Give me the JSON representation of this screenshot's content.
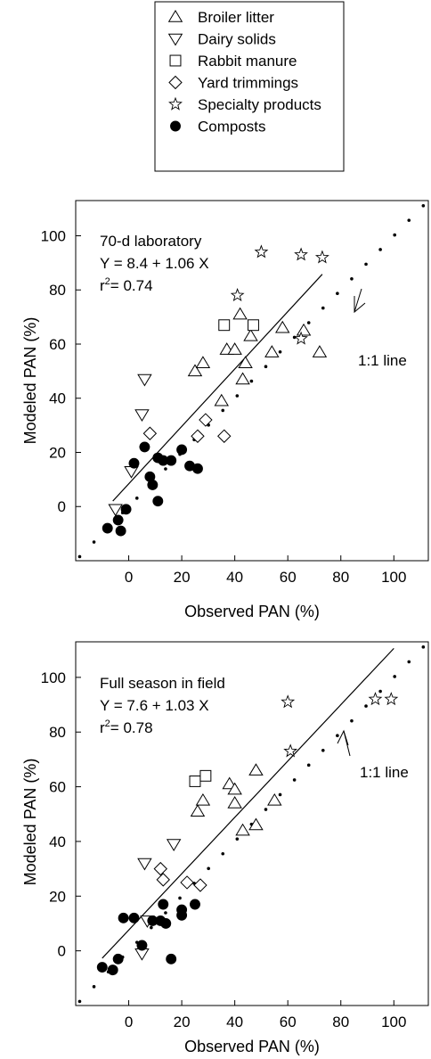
{
  "legend": {
    "items": [
      {
        "marker": "triangle-up",
        "label": "Broiler litter"
      },
      {
        "marker": "triangle-down",
        "label": "Dairy solids"
      },
      {
        "marker": "square",
        "label": "Rabbit  manure"
      },
      {
        "marker": "diamond",
        "label": "Yard trimmings"
      },
      {
        "marker": "star",
        "label": "Specialty products"
      },
      {
        "marker": "filled-circle",
        "label": "Composts"
      }
    ]
  },
  "chart_data": [
    {
      "type": "scatter",
      "panel_label": "70-d laboratory",
      "equation": "Y = 8.4 + 1.06 X",
      "r2_prefix": "r",
      "r2_sup": "2",
      "r2_value": "=  0.74",
      "oneone_label": "1:1 line",
      "xlabel": "Observed PAN (%)",
      "ylabel": "Modeled PAN (%)",
      "xlim": [
        -20,
        113
      ],
      "ylim": [
        -20,
        113
      ],
      "xticks": [
        0,
        20,
        40,
        60,
        80,
        100
      ],
      "yticks": [
        0,
        20,
        40,
        60,
        80,
        100
      ],
      "regression": {
        "intercept": 8.4,
        "slope": 1.06,
        "x_range": [
          -6,
          73
        ]
      },
      "series": [
        {
          "marker": "triangle-up",
          "points": [
            [
              25,
              50
            ],
            [
              28,
              53
            ],
            [
              35,
              39
            ],
            [
              37,
              58
            ],
            [
              40,
              58
            ],
            [
              42,
              71
            ],
            [
              43,
              47
            ],
            [
              44,
              53
            ],
            [
              46,
              63
            ],
            [
              54,
              57
            ],
            [
              58,
              66
            ],
            [
              66,
              65
            ],
            [
              72,
              57
            ]
          ]
        },
        {
          "marker": "triangle-down",
          "points": [
            [
              -5,
              -1
            ],
            [
              1,
              13
            ],
            [
              5,
              34
            ],
            [
              6,
              47
            ]
          ]
        },
        {
          "marker": "square",
          "points": [
            [
              36,
              67
            ],
            [
              47,
              67
            ]
          ]
        },
        {
          "marker": "diamond",
          "points": [
            [
              8,
              27
            ],
            [
              26,
              26
            ],
            [
              29,
              32
            ],
            [
              36,
              26
            ]
          ]
        },
        {
          "marker": "star",
          "points": [
            [
              41,
              78
            ],
            [
              50,
              94
            ],
            [
              65,
              93
            ],
            [
              73,
              92
            ],
            [
              65,
              62
            ]
          ]
        },
        {
          "marker": "filled-circle",
          "points": [
            [
              -8,
              -8
            ],
            [
              -4,
              -5
            ],
            [
              -3,
              -9
            ],
            [
              -1,
              -1
            ],
            [
              2,
              16
            ],
            [
              6,
              22
            ],
            [
              8,
              11
            ],
            [
              9,
              8
            ],
            [
              11,
              2
            ],
            [
              11,
              18
            ],
            [
              13,
              17
            ],
            [
              16,
              17
            ],
            [
              20,
              21
            ],
            [
              23,
              15
            ],
            [
              26,
              14
            ]
          ]
        }
      ]
    },
    {
      "type": "scatter",
      "panel_label": "Full season in field",
      "equation": "Y = 7.6 + 1.03 X",
      "r2_prefix": "r",
      "r2_sup": "2",
      "r2_value": "=  0.78",
      "oneone_label": "1:1 line",
      "xlabel": "Observed PAN (%)",
      "ylabel": "Modeled PAN (%)",
      "xlim": [
        -20,
        113
      ],
      "ylim": [
        -20,
        113
      ],
      "xticks": [
        0,
        20,
        40,
        60,
        80,
        100
      ],
      "yticks": [
        0,
        20,
        40,
        60,
        80,
        100
      ],
      "regression": {
        "intercept": 7.6,
        "slope": 1.03,
        "x_range": [
          -10,
          100
        ]
      },
      "series": [
        {
          "marker": "triangle-up",
          "points": [
            [
              26,
              51
            ],
            [
              28,
              55
            ],
            [
              38,
              61
            ],
            [
              40,
              54
            ],
            [
              40,
              59
            ],
            [
              43,
              44
            ],
            [
              48,
              46
            ],
            [
              48,
              66
            ],
            [
              55,
              55
            ]
          ]
        },
        {
          "marker": "triangle-down",
          "points": [
            [
              5,
              -1
            ],
            [
              6,
              32
            ],
            [
              7,
              11
            ],
            [
              17,
              39
            ]
          ]
        },
        {
          "marker": "square",
          "points": [
            [
              25,
              62
            ],
            [
              29,
              64
            ]
          ]
        },
        {
          "marker": "diamond",
          "points": [
            [
              12,
              30
            ],
            [
              13,
              26
            ],
            [
              22,
              25
            ],
            [
              27,
              24
            ]
          ]
        },
        {
          "marker": "star",
          "points": [
            [
              60,
              91
            ],
            [
              61,
              73
            ],
            [
              93,
              92
            ],
            [
              99,
              92
            ]
          ]
        },
        {
          "marker": "filled-circle",
          "points": [
            [
              -10,
              -6
            ],
            [
              -6,
              -7
            ],
            [
              -4,
              -3
            ],
            [
              -2,
              12
            ],
            [
              2,
              12
            ],
            [
              5,
              2
            ],
            [
              9,
              11
            ],
            [
              12,
              11
            ],
            [
              13,
              17
            ],
            [
              14,
              10
            ],
            [
              16,
              -3
            ],
            [
              20,
              13
            ],
            [
              20,
              15
            ],
            [
              25,
              17
            ]
          ]
        }
      ]
    }
  ]
}
